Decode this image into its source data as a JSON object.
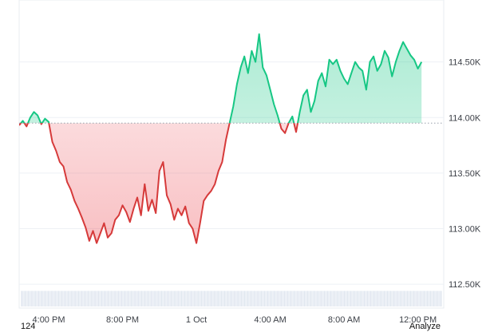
{
  "colors": {
    "up": "#16c784",
    "up_fill": "#16c784",
    "down": "#d63a3a",
    "down_fill": "#ea3943",
    "baseline": "#9aa1ad",
    "grid": "#eef1f5",
    "volume": "#dde4ee"
  },
  "footer": {
    "left_text": "124",
    "right_text": "Analyze"
  },
  "chart_data": {
    "type": "area",
    "title": "",
    "xlabel": "",
    "ylabel": "",
    "baseline": 113950,
    "ylim": [
      112300,
      115000
    ],
    "y_ticks": [
      112500,
      113000,
      113500,
      114000,
      114500
    ],
    "y_tick_labels": [
      "112.50K",
      "113.00K",
      "113.50K",
      "114.00K",
      "114.50K"
    ],
    "x_ticks": [
      {
        "t": 1.6,
        "label": "4:00 PM"
      },
      {
        "t": 5.6,
        "label": "8:00 PM"
      },
      {
        "t": 9.6,
        "label": "1 Oct"
      },
      {
        "t": 13.6,
        "label": "4:00 AM"
      },
      {
        "t": 17.6,
        "label": "8:00 AM"
      },
      {
        "t": 21.6,
        "label": "12:00 PM"
      }
    ],
    "x_range": [
      0,
      23.0
    ],
    "series": [
      {
        "points": [
          [
            0.0,
            113930
          ],
          [
            0.2,
            113970
          ],
          [
            0.4,
            113920
          ],
          [
            0.6,
            114000
          ],
          [
            0.8,
            114050
          ],
          [
            1.0,
            114020
          ],
          [
            1.2,
            113940
          ],
          [
            1.4,
            113990
          ],
          [
            1.6,
            113960
          ],
          [
            1.8,
            113780
          ],
          [
            2.0,
            113700
          ],
          [
            2.2,
            113600
          ],
          [
            2.4,
            113560
          ],
          [
            2.6,
            113420
          ],
          [
            2.8,
            113350
          ],
          [
            3.0,
            113250
          ],
          [
            3.2,
            113180
          ],
          [
            3.4,
            113100
          ],
          [
            3.6,
            113010
          ],
          [
            3.8,
            112890
          ],
          [
            4.0,
            112980
          ],
          [
            4.2,
            112870
          ],
          [
            4.4,
            112960
          ],
          [
            4.6,
            113050
          ],
          [
            4.8,
            112920
          ],
          [
            5.0,
            112960
          ],
          [
            5.2,
            113080
          ],
          [
            5.4,
            113120
          ],
          [
            5.6,
            113210
          ],
          [
            5.8,
            113150
          ],
          [
            6.0,
            113060
          ],
          [
            6.2,
            113180
          ],
          [
            6.4,
            113280
          ],
          [
            6.6,
            113120
          ],
          [
            6.8,
            113400
          ],
          [
            7.0,
            113160
          ],
          [
            7.2,
            113260
          ],
          [
            7.4,
            113140
          ],
          [
            7.6,
            113520
          ],
          [
            7.8,
            113600
          ],
          [
            8.0,
            113300
          ],
          [
            8.2,
            113220
          ],
          [
            8.4,
            113080
          ],
          [
            8.6,
            113180
          ],
          [
            8.8,
            113120
          ],
          [
            9.0,
            113200
          ],
          [
            9.2,
            113050
          ],
          [
            9.4,
            113000
          ],
          [
            9.6,
            112870
          ],
          [
            9.8,
            113050
          ],
          [
            10.0,
            113250
          ],
          [
            10.2,
            113300
          ],
          [
            10.4,
            113340
          ],
          [
            10.6,
            113400
          ],
          [
            10.8,
            113520
          ],
          [
            11.0,
            113600
          ],
          [
            11.2,
            113800
          ],
          [
            11.4,
            113950
          ],
          [
            11.6,
            114100
          ],
          [
            11.8,
            114300
          ],
          [
            12.0,
            114450
          ],
          [
            12.2,
            114550
          ],
          [
            12.4,
            114400
          ],
          [
            12.6,
            114600
          ],
          [
            12.8,
            114500
          ],
          [
            13.0,
            114750
          ],
          [
            13.2,
            114450
          ],
          [
            13.4,
            114380
          ],
          [
            13.6,
            114250
          ],
          [
            13.8,
            114120
          ],
          [
            14.0,
            114020
          ],
          [
            14.2,
            113900
          ],
          [
            14.4,
            113860
          ],
          [
            14.6,
            113950
          ],
          [
            14.8,
            114010
          ],
          [
            15.0,
            113870
          ],
          [
            15.2,
            114050
          ],
          [
            15.4,
            114200
          ],
          [
            15.6,
            114250
          ],
          [
            15.8,
            114050
          ],
          [
            16.0,
            114150
          ],
          [
            16.2,
            114330
          ],
          [
            16.4,
            114400
          ],
          [
            16.6,
            114280
          ],
          [
            16.8,
            114520
          ],
          [
            17.0,
            114480
          ],
          [
            17.2,
            114520
          ],
          [
            17.4,
            114420
          ],
          [
            17.6,
            114350
          ],
          [
            17.8,
            114300
          ],
          [
            18.0,
            114400
          ],
          [
            18.2,
            114500
          ],
          [
            18.4,
            114450
          ],
          [
            18.6,
            114420
          ],
          [
            18.8,
            114250
          ],
          [
            19.0,
            114500
          ],
          [
            19.2,
            114550
          ],
          [
            19.4,
            114420
          ],
          [
            19.6,
            114480
          ],
          [
            19.8,
            114600
          ],
          [
            20.0,
            114540
          ],
          [
            20.2,
            114370
          ],
          [
            20.4,
            114500
          ],
          [
            20.6,
            114600
          ],
          [
            20.8,
            114680
          ],
          [
            21.0,
            114620
          ],
          [
            21.2,
            114560
          ],
          [
            21.4,
            114520
          ],
          [
            21.6,
            114440
          ],
          [
            21.8,
            114500
          ]
        ]
      }
    ],
    "volume_band": {
      "low": 112300,
      "high": 112440
    },
    "grid": true,
    "legend": "none"
  }
}
